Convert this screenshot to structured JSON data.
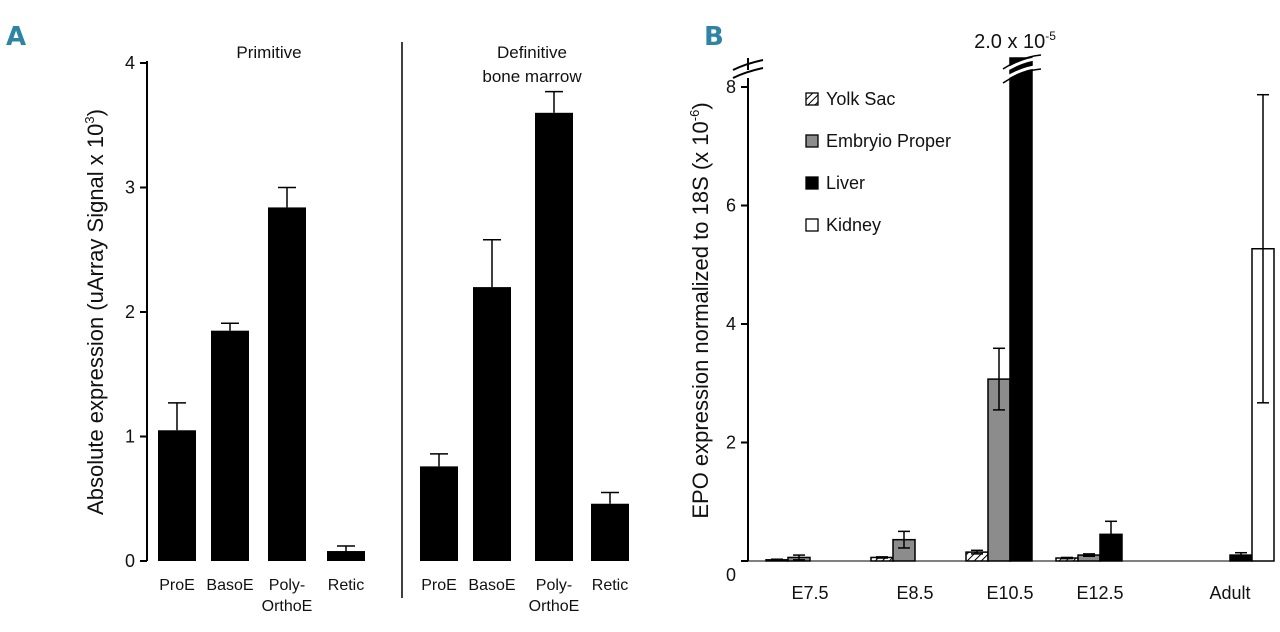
{
  "chart_data": [
    {
      "panel": "A",
      "type": "bar",
      "ylabel_main": "Absolute expression (uArray Signal x 10",
      "ylabel_exp": "3",
      "ylabel_close": ")",
      "ylim": [
        0,
        4
      ],
      "yticks": [
        "0",
        "1",
        "2",
        "3",
        "4"
      ],
      "color": "#000000",
      "groups": [
        {
          "title_lines": [
            "Primitive"
          ],
          "categories": [
            [
              "ProE"
            ],
            [
              "BasoE"
            ],
            [
              "Poly-",
              "OrthoE"
            ],
            [
              "Retic"
            ]
          ],
          "values": [
            1.05,
            1.85,
            2.84,
            0.08
          ],
          "errors": [
            0.22,
            0.06,
            0.16,
            0.04
          ]
        },
        {
          "title_lines": [
            "Definitive",
            "bone marrow"
          ],
          "categories": [
            [
              "ProE"
            ],
            [
              "BasoE"
            ],
            [
              "Poly-",
              "OrthoE"
            ],
            [
              "Retic"
            ]
          ],
          "values": [
            0.76,
            2.2,
            3.6,
            0.46
          ],
          "errors": [
            0.1,
            0.38,
            0.17,
            0.09
          ]
        }
      ]
    },
    {
      "panel": "B",
      "type": "bar",
      "ylabel_main": "EPO expression normalized to 18S (x 10",
      "ylabel_exp": "-6",
      "ylabel_close": ")",
      "ylim": [
        0,
        8
      ],
      "yticks": [
        "0",
        "2",
        "4",
        "6",
        "8"
      ],
      "categories": [
        "E7.5",
        "E8.5",
        "E10.5",
        "E12.5",
        "Adult"
      ],
      "axis_break": true,
      "callout_main": "2.0 x 10",
      "callout_exp": "-5",
      "callout_series_index": 2,
      "callout_category_index": 2,
      "series": [
        {
          "name": "Yolk Sac",
          "pattern": "hatched",
          "fill": "#ffffff",
          "values": [
            0.02,
            0.06,
            0.15,
            0.05,
            null
          ],
          "errors": [
            0.01,
            0.01,
            0.03,
            0.01,
            null
          ]
        },
        {
          "name": "Embryio Proper",
          "pattern": "solid",
          "fill": "#8c8c8c",
          "values": [
            0.06,
            0.36,
            3.07,
            0.1,
            null
          ],
          "errors": [
            0.04,
            0.14,
            0.52,
            0.02,
            null
          ]
        },
        {
          "name": "Liver",
          "pattern": "solid",
          "fill": "#000000",
          "values": [
            null,
            null,
            20,
            0.45,
            0.1
          ],
          "errors": [
            null,
            null,
            null,
            0.22,
            0.04
          ]
        },
        {
          "name": "Kidney",
          "pattern": "solid",
          "fill": "#ffffff",
          "values": [
            null,
            null,
            null,
            null,
            5.27
          ],
          "errors": [
            null,
            null,
            null,
            null,
            2.6
          ]
        }
      ]
    }
  ]
}
